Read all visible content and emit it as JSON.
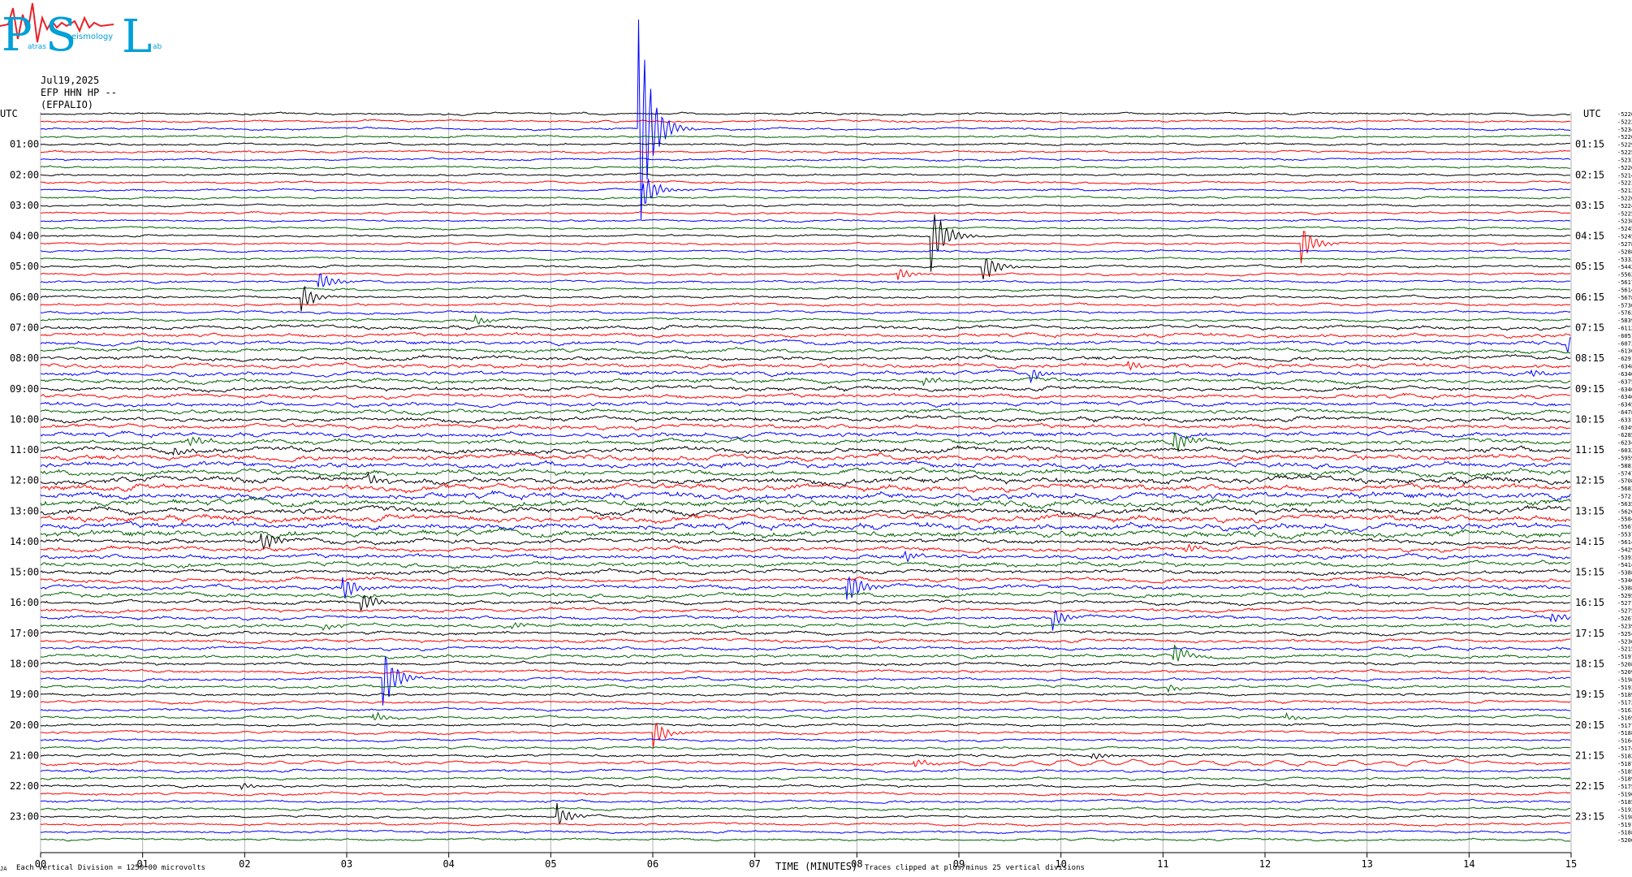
{
  "logo": {
    "letters": [
      "P",
      "S",
      "L"
    ],
    "subtext": [
      "atras",
      "eismology",
      "ab"
    ],
    "color": "#00a0d8",
    "wave_color": "#e8222a"
  },
  "header": {
    "date": "Jul19,2025",
    "station_line": "EFP HHN HP --",
    "station_name": "(EFPALIO)"
  },
  "axes": {
    "left_title": "UTC",
    "right_title": "UTC",
    "left_hours": [
      "01:00",
      "02:00",
      "03:00",
      "04:00",
      "05:00",
      "06:00",
      "07:00",
      "08:00",
      "09:00",
      "10:00",
      "11:00",
      "12:00",
      "13:00",
      "14:00",
      "15:00",
      "16:00",
      "17:00",
      "18:00",
      "19:00",
      "20:00",
      "21:00",
      "22:00",
      "23:00"
    ],
    "right_hours": [
      "01:15",
      "02:15",
      "03:15",
      "04:15",
      "05:15",
      "06:15",
      "07:15",
      "08:15",
      "09:15",
      "10:15",
      "11:15",
      "12:15",
      "13:15",
      "14:15",
      "15:15",
      "16:15",
      "17:15",
      "18:15",
      "19:15",
      "20:15",
      "21:15",
      "22:15",
      "23:15"
    ],
    "x_ticks": [
      "00",
      "01",
      "02",
      "03",
      "04",
      "05",
      "06",
      "07",
      "08",
      "09",
      "10",
      "11",
      "12",
      "13",
      "14",
      "15"
    ],
    "xlabel": "TIME (MINUTES)"
  },
  "footer": {
    "scale_note": "Each Vertical Division = 1250.00 microvolts",
    "clip_note": "Traces clipped at plus/minus 25 vertical divisions",
    "tiny_mark": "JA"
  },
  "colors": [
    "#000000",
    "#ff0000",
    "#0000ff",
    "#006400"
  ],
  "chart_data": {
    "type": "line",
    "title": "",
    "xlabel": "TIME (MINUTES)",
    "xlim": [
      0,
      15
    ],
    "rows": 96,
    "minutes_per_row": 15,
    "row_offsets": [
      "-5226",
      "-5222",
      "-5234",
      "-5226",
      "-5229",
      "-5225",
      "-5233",
      "-5226",
      "-5214",
      "-5223",
      "-5212",
      "-5226",
      "-5224",
      "-5225",
      "-5238",
      "-5245",
      "-5245",
      "-5278",
      "-5288",
      "-5332",
      "-5442",
      "-5562",
      "-5617",
      "-5614",
      "-5678",
      "-5730",
      "-5762",
      "-5839",
      "-6112",
      "-6051",
      "-6073",
      "-6136",
      "-6291",
      "-6348",
      "-6340",
      "-6375",
      "-6346",
      "-6346",
      "-6345",
      "-6478",
      "-6331",
      "-6349",
      "-6285",
      "-6234",
      "-6032",
      "-5959",
      "-5881",
      "-5747",
      "-5708",
      "-5683",
      "-5721",
      "-5635",
      "-5626",
      "-5584",
      "-5567",
      "-5537",
      "-5614",
      "-5429",
      "-5393",
      "-5414",
      "-5388",
      "-5346",
      "-5388",
      "-5295",
      "-5277",
      "-5275",
      "-5267",
      "-5239",
      "-5254",
      "-5236",
      "-5215",
      "-5197",
      "-5208",
      "-5209",
      "-5198",
      "-5193",
      "-5189",
      "-5172",
      "-5163",
      "-5169",
      "-5177",
      "-5188",
      "-5164",
      "-5174",
      "-5182",
      "-5187",
      "-5185",
      "-5189",
      "-5175",
      "-5196",
      "-5185",
      "-5192",
      "-5198",
      "-5191",
      "-5188",
      "-5206"
    ],
    "noise_levels_by_hour": [
      1.0,
      1.0,
      1.0,
      1.0,
      1.0,
      1.1,
      1.2,
      1.8,
      2.0,
      2.0,
      2.2,
      2.6,
      3.0,
      3.0,
      2.2,
      2.0,
      1.7,
      1.6,
      1.4,
      1.3,
      1.2,
      1.3,
      1.2,
      1.1
    ],
    "events": [
      {
        "row": 2,
        "minute": 5.85,
        "amplitude": 18,
        "note": "clipped"
      },
      {
        "row": 10,
        "minute": 5.9,
        "amplitude": 3.0
      },
      {
        "row": 16,
        "minute": 8.72,
        "amplitude": 6.5,
        "note": "clipped"
      },
      {
        "row": 17,
        "minute": 12.35,
        "amplitude": 3.0
      },
      {
        "row": 20,
        "minute": 9.22,
        "amplitude": 3.0
      },
      {
        "row": 21,
        "minute": 8.4,
        "amplitude": 1.0
      },
      {
        "row": 22,
        "minute": 2.72,
        "amplitude": 1.8
      },
      {
        "row": 24,
        "minute": 2.55,
        "amplitude": 2.2
      },
      {
        "row": 27,
        "minute": 4.25,
        "amplitude": 0.8
      },
      {
        "row": 30,
        "minute": 14.95,
        "amplitude": 1.5
      },
      {
        "row": 34,
        "minute": 9.7,
        "amplitude": 1.0
      },
      {
        "row": 33,
        "minute": 10.65,
        "amplitude": 0.8
      },
      {
        "row": 34,
        "minute": 14.6,
        "amplitude": 0.8
      },
      {
        "row": 35,
        "minute": 8.65,
        "amplitude": 0.7
      },
      {
        "row": 43,
        "minute": 1.45,
        "amplitude": 1.0
      },
      {
        "row": 43,
        "minute": 11.1,
        "amplitude": 2.0
      },
      {
        "row": 44,
        "minute": 1.3,
        "amplitude": 0.8
      },
      {
        "row": 48,
        "minute": 3.2,
        "amplitude": 1.0
      },
      {
        "row": 56,
        "minute": 2.15,
        "amplitude": 2.0
      },
      {
        "row": 57,
        "minute": 11.2,
        "amplitude": 0.8
      },
      {
        "row": 58,
        "minute": 8.45,
        "amplitude": 0.9
      },
      {
        "row": 62,
        "minute": 2.95,
        "amplitude": 2.2
      },
      {
        "row": 62,
        "minute": 7.9,
        "amplitude": 3.0
      },
      {
        "row": 64,
        "minute": 3.12,
        "amplitude": 2.0
      },
      {
        "row": 66,
        "minute": 9.9,
        "amplitude": 2.0
      },
      {
        "row": 66,
        "minute": 14.8,
        "amplitude": 0.9
      },
      {
        "row": 67,
        "minute": 2.75,
        "amplitude": 0.6
      },
      {
        "row": 67,
        "minute": 4.6,
        "amplitude": 0.6
      },
      {
        "row": 71,
        "minute": 11.1,
        "amplitude": 1.8
      },
      {
        "row": 74,
        "minute": 3.35,
        "amplitude": 5.0
      },
      {
        "row": 75,
        "minute": 11.05,
        "amplitude": 0.5
      },
      {
        "row": 79,
        "minute": 3.25,
        "amplitude": 0.8
      },
      {
        "row": 79,
        "minute": 12.2,
        "amplitude": 0.6
      },
      {
        "row": 81,
        "minute": 6.0,
        "amplitude": 2.0
      },
      {
        "row": 84,
        "minute": 10.3,
        "amplitude": 0.7
      },
      {
        "row": 85,
        "minute": 8.55,
        "amplitude": 0.8
      },
      {
        "row": 88,
        "minute": 1.95,
        "amplitude": 0.6
      },
      {
        "row": 92,
        "minute": 5.05,
        "amplitude": 2.0
      }
    ]
  }
}
